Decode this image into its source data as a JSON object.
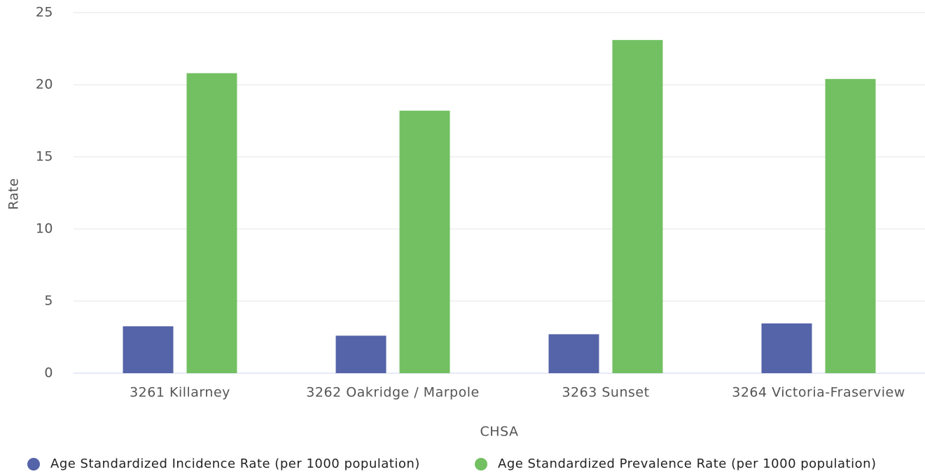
{
  "chart_data": {
    "type": "bar",
    "categories": [
      "3261 Killarney",
      "3262 Oakridge / Marpole",
      "3263 Sunset",
      "3264 Victoria-Fraserview"
    ],
    "series": [
      {
        "name": "Age Standardized Incidence Rate (per 1000 population)",
        "color": "#5563a8",
        "values": [
          3.25,
          2.6,
          2.7,
          3.45
        ]
      },
      {
        "name": "Age Standardized Prevalence Rate (per 1000 population)",
        "color": "#73c062",
        "values": [
          20.8,
          18.2,
          23.1,
          20.4
        ]
      }
    ],
    "x_label": "CHSA",
    "y_label": "Rate",
    "ylim": [
      0,
      25
    ],
    "yticks": [
      0,
      5,
      10,
      15,
      20,
      25
    ],
    "grid": true,
    "legend": "bottom"
  }
}
